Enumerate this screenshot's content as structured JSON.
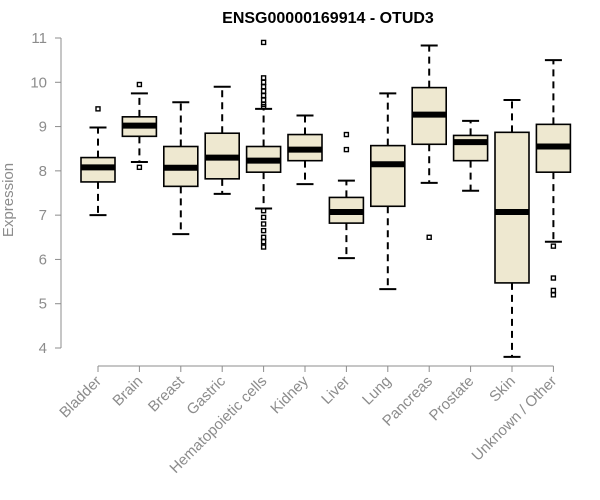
{
  "chart_data": {
    "type": "boxplot",
    "title": "ENSG00000169914 - OTUD3",
    "xlabel": "",
    "ylabel": "Expression",
    "ylim": [
      3.8,
      11.1
    ],
    "yticks": [
      4,
      5,
      6,
      7,
      8,
      9,
      10,
      11
    ],
    "grid": false,
    "box_fill": "#EEE8D0",
    "box_stroke": "#000000",
    "median_color": "#000000",
    "axis_color": "#8c8c8c",
    "categories": [
      "Bladder",
      "Brain",
      "Breast",
      "Gastric",
      "Hematopoietic cells",
      "Kidney",
      "Liver",
      "Lung",
      "Pancreas",
      "Prostate",
      "Skin",
      "Unknown / Other"
    ],
    "boxes": [
      {
        "category": "Bladder",
        "whisker_low": 7.0,
        "q1": 7.75,
        "median": 8.08,
        "q3": 8.3,
        "whisker_high": 8.98,
        "outliers": [
          9.4
        ]
      },
      {
        "category": "Brain",
        "whisker_low": 8.2,
        "q1": 8.78,
        "median": 9.02,
        "q3": 9.22,
        "whisker_high": 9.75,
        "outliers": [
          9.95,
          8.08
        ]
      },
      {
        "category": "Breast",
        "whisker_low": 6.57,
        "q1": 7.65,
        "median": 8.07,
        "q3": 8.55,
        "whisker_high": 9.55,
        "outliers": []
      },
      {
        "category": "Gastric",
        "whisker_low": 7.48,
        "q1": 7.82,
        "median": 8.3,
        "q3": 8.85,
        "whisker_high": 9.9,
        "outliers": []
      },
      {
        "category": "Hematopoietic cells",
        "whisker_low": 7.15,
        "q1": 7.97,
        "median": 8.23,
        "q3": 8.55,
        "whisker_high": 9.4,
        "outliers": [
          10.9,
          10.1,
          10.0,
          9.9,
          9.8,
          9.7,
          9.6,
          9.5,
          9.45,
          7.1,
          6.95,
          6.8,
          6.65,
          6.5,
          6.4,
          6.28
        ]
      },
      {
        "category": "Kidney",
        "whisker_low": 7.7,
        "q1": 8.23,
        "median": 8.48,
        "q3": 8.82,
        "whisker_high": 9.25,
        "outliers": []
      },
      {
        "category": "Liver",
        "whisker_low": 6.03,
        "q1": 6.82,
        "median": 7.07,
        "q3": 7.4,
        "whisker_high": 7.78,
        "outliers": [
          8.82,
          8.48
        ]
      },
      {
        "category": "Lung",
        "whisker_low": 5.33,
        "q1": 7.2,
        "median": 8.15,
        "q3": 8.57,
        "whisker_high": 9.75,
        "outliers": []
      },
      {
        "category": "Pancreas",
        "whisker_low": 7.73,
        "q1": 8.6,
        "median": 9.27,
        "q3": 9.88,
        "whisker_high": 10.83,
        "outliers": [
          6.5
        ]
      },
      {
        "category": "Prostate",
        "whisker_low": 7.55,
        "q1": 8.23,
        "median": 8.65,
        "q3": 8.8,
        "whisker_high": 9.13,
        "outliers": []
      },
      {
        "category": "Skin",
        "whisker_low": 3.8,
        "q1": 5.47,
        "median": 7.07,
        "q3": 8.87,
        "whisker_high": 9.6,
        "outliers": []
      },
      {
        "category": "Unknown / Other",
        "whisker_low": 6.4,
        "q1": 7.97,
        "median": 8.55,
        "q3": 9.05,
        "whisker_high": 10.5,
        "outliers": [
          6.3,
          5.58,
          5.3,
          5.2
        ]
      }
    ]
  }
}
